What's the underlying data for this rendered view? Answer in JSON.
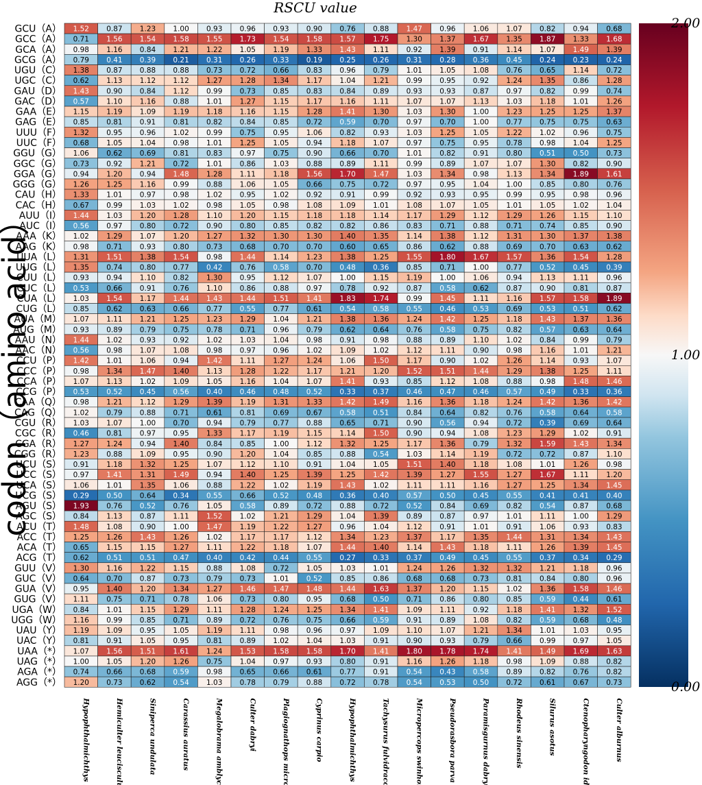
{
  "chart_data": {
    "type": "heatmap",
    "title": "RSCU value",
    "ylabel": "codon（amino acid）",
    "xlabel": "",
    "colorbar": {
      "ticks": [
        "2.00",
        "1.00",
        "0.00"
      ],
      "range": [
        0,
        2
      ],
      "colors": [
        "#053061",
        "#f7f7f7",
        "#67001f"
      ]
    },
    "columns": [
      "Hypophthalmichthys nobilis",
      "Hemiculter leucisculus",
      "Siniperca undulata",
      "Carassius auratus",
      "Megalobrama amblycephala",
      "Culter dabryi",
      "Plagiognathops microlepis",
      "Cyprinus carpio",
      "Hypophthalmichthys molitrix",
      "Tachysurus fulvidraco",
      "Micropercops swinhonis",
      "Pseudorasbora parva",
      "Paramisgurnus dabryanus",
      "Rhodeus sinensis",
      "Silurus asotus",
      "Ctenopharyngodon idella",
      "Culter alburnus"
    ],
    "rows": [
      "GCU（A）",
      "GCC（A）",
      "GCA（A）",
      "GCG（A）",
      "UGU（C）",
      "UGC（C）",
      "GAU（D）",
      "GAC（D）",
      "GAA（E）",
      "GAG（E）",
      "UUU（F）",
      "UUC（F）",
      "GGU（G）",
      "GGC（G）",
      "GGA（G）",
      "GGG（G）",
      "CAU（H）",
      "CAC（H）",
      "AUU（I）",
      "AUC（I）",
      "AAA（K）",
      "AAG（K）",
      "UUA（L）",
      "UUG（L）",
      "CUU（L）",
      "CUC（L）",
      "CUA（L）",
      "CUG（L）",
      "AUA（M）",
      "AUG（M）",
      "AAU（N）",
      "AAC（N）",
      "CCU（P）",
      "CCC（P）",
      "CCA（P）",
      "CCG（P）",
      "CAA（Q）",
      "CAG（Q）",
      "CGU（R）",
      "CGC（R）",
      "CGA（R）",
      "CGG（R）",
      "UCU（S）",
      "UCC（S）",
      "UCA（S）",
      "UCG（S）",
      "AGU（S）",
      "AGC（S）",
      "ACU（T）",
      "ACC（T）",
      "ACA（T）",
      "ACG（T）",
      "GUU（V）",
      "GUC（V）",
      "GUA（V）",
      "GUG（V）",
      "UGA（W）",
      "UGG（W）",
      "UAU（Y）",
      "UAC（Y）",
      "UAA（*）",
      "UAG（*）",
      "AGA（*）",
      "AGG（*）"
    ],
    "values": [
      [
        1.52,
        0.87,
        1.23,
        1.0,
        0.93,
        0.96,
        0.93,
        0.9,
        0.76,
        0.88,
        1.47,
        0.96,
        1.06,
        1.07,
        0.82,
        0.94,
        0.68
      ],
      [
        0.71,
        1.56,
        1.54,
        1.58,
        1.55,
        1.73,
        1.54,
        1.58,
        1.57,
        1.75,
        1.3,
        1.37,
        1.67,
        1.35,
        1.87,
        1.33,
        1.68
      ],
      [
        0.98,
        1.16,
        0.84,
        1.21,
        1.22,
        1.05,
        1.19,
        1.33,
        1.43,
        1.11,
        0.92,
        1.39,
        0.91,
        1.14,
        1.07,
        1.49,
        1.39
      ],
      [
        0.79,
        0.41,
        0.39,
        0.21,
        0.31,
        0.26,
        0.33,
        0.19,
        0.25,
        0.26,
        0.31,
        0.28,
        0.36,
        0.45,
        0.24,
        0.23,
        0.24
      ],
      [
        1.38,
        0.87,
        0.88,
        0.88,
        0.73,
        0.72,
        0.66,
        0.83,
        0.96,
        0.79,
        1.01,
        1.05,
        1.08,
        0.76,
        0.65,
        1.14,
        0.72
      ],
      [
        0.62,
        1.13,
        1.12,
        1.12,
        1.27,
        1.28,
        1.34,
        1.17,
        1.04,
        1.21,
        0.99,
        0.95,
        0.92,
        1.24,
        1.35,
        0.86,
        1.28
      ],
      [
        1.43,
        0.9,
        0.84,
        1.12,
        0.99,
        0.73,
        0.85,
        0.83,
        0.84,
        0.89,
        0.93,
        0.93,
        0.87,
        0.97,
        0.82,
        0.99,
        0.74
      ],
      [
        0.57,
        1.1,
        1.16,
        0.88,
        1.01,
        1.27,
        1.15,
        1.17,
        1.16,
        1.11,
        1.07,
        1.07,
        1.13,
        1.03,
        1.18,
        1.01,
        1.26
      ],
      [
        1.15,
        1.19,
        1.09,
        1.19,
        1.18,
        1.16,
        1.15,
        1.28,
        1.41,
        1.3,
        1.03,
        1.3,
        1.0,
        1.23,
        1.25,
        1.25,
        1.37
      ],
      [
        0.85,
        0.81,
        0.91,
        0.81,
        0.82,
        0.84,
        0.85,
        0.72,
        0.59,
        0.7,
        0.97,
        0.7,
        1.0,
        0.77,
        0.75,
        0.75,
        0.63
      ],
      [
        1.32,
        0.95,
        0.96,
        1.02,
        0.99,
        0.75,
        0.95,
        1.06,
        0.82,
        0.93,
        1.03,
        1.25,
        1.05,
        1.22,
        1.02,
        0.96,
        0.75
      ],
      [
        0.68,
        1.05,
        1.04,
        0.98,
        1.01,
        1.25,
        1.05,
        0.94,
        1.18,
        1.07,
        0.97,
        0.75,
        0.95,
        0.78,
        0.98,
        1.04,
        1.25
      ],
      [
        1.06,
        0.62,
        0.69,
        0.81,
        0.83,
        0.97,
        0.75,
        0.9,
        0.66,
        0.7,
        1.01,
        0.82,
        0.91,
        0.8,
        0.51,
        0.5,
        0.73
      ],
      [
        0.73,
        0.92,
        1.21,
        0.72,
        1.01,
        0.86,
        1.03,
        0.88,
        0.89,
        1.11,
        0.99,
        0.89,
        1.07,
        1.07,
        1.3,
        0.82,
        0.9
      ],
      [
        0.94,
        1.2,
        0.94,
        1.48,
        1.28,
        1.11,
        1.18,
        1.56,
        1.7,
        1.47,
        1.03,
        1.34,
        0.98,
        1.13,
        1.34,
        1.89,
        1.61
      ],
      [
        1.26,
        1.25,
        1.16,
        0.99,
        0.88,
        1.06,
        1.05,
        0.66,
        0.75,
        0.72,
        0.97,
        0.95,
        1.04,
        1.0,
        0.85,
        0.8,
        0.76
      ],
      [
        1.33,
        1.01,
        0.97,
        0.98,
        1.02,
        0.95,
        1.02,
        0.92,
        0.91,
        0.99,
        0.92,
        0.93,
        0.95,
        0.99,
        0.95,
        0.98,
        0.96
      ],
      [
        0.67,
        0.99,
        1.03,
        1.02,
        0.98,
        1.05,
        0.98,
        1.08,
        1.09,
        1.01,
        1.08,
        1.07,
        1.05,
        1.01,
        1.05,
        1.02,
        1.04
      ],
      [
        1.44,
        1.03,
        1.2,
        1.28,
        1.1,
        1.2,
        1.15,
        1.18,
        1.18,
        1.14,
        1.17,
        1.29,
        1.12,
        1.29,
        1.26,
        1.15,
        1.1
      ],
      [
        0.56,
        0.97,
        0.8,
        0.72,
        0.9,
        0.8,
        0.85,
        0.82,
        0.82,
        0.86,
        0.83,
        0.71,
        0.88,
        0.71,
        0.74,
        0.85,
        0.9
      ],
      [
        1.02,
        1.29,
        1.07,
        1.2,
        1.27,
        1.32,
        1.3,
        1.3,
        1.4,
        1.35,
        1.14,
        1.38,
        1.12,
        1.31,
        1.3,
        1.37,
        1.38
      ],
      [
        0.98,
        0.71,
        0.93,
        0.8,
        0.73,
        0.68,
        0.7,
        0.7,
        0.6,
        0.65,
        0.86,
        0.62,
        0.88,
        0.69,
        0.7,
        0.63,
        0.62
      ],
      [
        1.31,
        1.51,
        1.38,
        1.54,
        0.98,
        1.44,
        1.14,
        1.23,
        1.38,
        1.25,
        1.55,
        1.8,
        1.67,
        1.57,
        1.36,
        1.54,
        1.28
      ],
      [
        1.35,
        0.74,
        0.8,
        0.77,
        0.42,
        0.76,
        0.58,
        0.7,
        0.48,
        0.36,
        0.85,
        0.71,
        1.0,
        0.77,
        0.52,
        0.45,
        0.39
      ],
      [
        0.93,
        0.94,
        1.1,
        0.82,
        1.3,
        0.95,
        1.12,
        1.07,
        1.0,
        1.15,
        1.19,
        1.0,
        1.06,
        0.94,
        1.13,
        1.11,
        0.96
      ],
      [
        0.53,
        0.66,
        0.91,
        0.76,
        1.1,
        0.86,
        0.88,
        0.97,
        0.78,
        0.92,
        0.87,
        0.58,
        0.62,
        0.87,
        0.9,
        0.81,
        0.87
      ],
      [
        1.03,
        1.54,
        1.17,
        1.44,
        1.43,
        1.44,
        1.51,
        1.41,
        1.83,
        1.74,
        0.99,
        1.45,
        1.11,
        1.16,
        1.57,
        1.58,
        1.89
      ],
      [
        0.85,
        0.62,
        0.63,
        0.66,
        0.77,
        0.55,
        0.77,
        0.61,
        0.54,
        0.58,
        0.55,
        0.46,
        0.53,
        0.69,
        0.53,
        0.51,
        0.62
      ],
      [
        1.07,
        1.11,
        1.21,
        1.25,
        1.23,
        1.29,
        1.04,
        1.21,
        1.38,
        1.36,
        1.24,
        1.42,
        1.25,
        1.18,
        1.43,
        1.37,
        1.36
      ],
      [
        0.93,
        0.89,
        0.79,
        0.75,
        0.78,
        0.71,
        0.96,
        0.79,
        0.62,
        0.64,
        0.76,
        0.58,
        0.75,
        0.82,
        0.57,
        0.63,
        0.64
      ],
      [
        1.44,
        1.02,
        0.93,
        0.92,
        1.02,
        1.03,
        1.04,
        0.98,
        0.91,
        0.98,
        0.88,
        0.89,
        1.1,
        1.02,
        0.84,
        0.99,
        0.79
      ],
      [
        0.56,
        0.98,
        1.07,
        1.08,
        0.98,
        0.97,
        0.96,
        1.02,
        1.09,
        1.02,
        1.12,
        1.11,
        0.9,
        0.98,
        1.16,
        1.01,
        1.21
      ],
      [
        1.42,
        1.01,
        1.06,
        0.94,
        1.42,
        1.11,
        1.27,
        1.24,
        1.06,
        1.5,
        1.17,
        0.9,
        1.02,
        1.26,
        1.14,
        0.93,
        1.07
      ],
      [
        0.98,
        1.34,
        1.47,
        1.4,
        1.13,
        1.28,
        1.22,
        1.17,
        1.21,
        1.2,
        1.52,
        1.51,
        1.44,
        1.29,
        1.38,
        1.25,
        1.11
      ],
      [
        1.07,
        1.13,
        1.02,
        1.09,
        1.05,
        1.16,
        1.04,
        1.07,
        1.41,
        0.93,
        0.85,
        1.12,
        1.08,
        0.88,
        0.98,
        1.48,
        1.46
      ],
      [
        0.53,
        0.52,
        0.45,
        0.56,
        0.4,
        0.46,
        0.48,
        0.52,
        0.33,
        0.37,
        0.46,
        0.47,
        0.46,
        0.57,
        0.49,
        0.33,
        0.36
      ],
      [
        0.98,
        1.21,
        1.12,
        1.29,
        1.39,
        1.19,
        1.31,
        1.33,
        1.42,
        1.49,
        1.16,
        1.36,
        1.18,
        1.24,
        1.42,
        1.36,
        1.42
      ],
      [
        1.02,
        0.79,
        0.88,
        0.71,
        0.61,
        0.81,
        0.69,
        0.67,
        0.58,
        0.51,
        0.84,
        0.64,
        0.82,
        0.76,
        0.58,
        0.64,
        0.58
      ],
      [
        1.03,
        1.07,
        1.0,
        0.7,
        0.94,
        0.79,
        0.77,
        0.88,
        0.65,
        0.71,
        0.9,
        0.56,
        0.94,
        0.72,
        0.39,
        0.69,
        0.64
      ],
      [
        0.46,
        0.81,
        0.97,
        0.95,
        1.33,
        1.17,
        1.19,
        1.15,
        1.14,
        1.5,
        0.9,
        0.94,
        1.08,
        1.23,
        1.29,
        1.02,
        0.91
      ],
      [
        1.27,
        1.24,
        0.94,
        1.4,
        0.84,
        0.85,
        1.0,
        1.12,
        1.32,
        1.25,
        1.17,
        1.36,
        0.79,
        1.32,
        1.59,
        1.43,
        1.34
      ],
      [
        1.23,
        0.88,
        1.09,
        0.95,
        0.9,
        1.2,
        1.04,
        0.85,
        0.88,
        0.54,
        1.03,
        1.14,
        1.19,
        0.72,
        0.72,
        0.87,
        1.1
      ],
      [
        0.91,
        1.18,
        1.32,
        1.25,
        1.07,
        1.12,
        1.1,
        0.91,
        1.04,
        1.05,
        1.51,
        1.4,
        1.18,
        1.08,
        1.01,
        1.26,
        0.98
      ],
      [
        0.97,
        1.41,
        1.31,
        1.49,
        0.94,
        1.4,
        1.25,
        1.39,
        1.25,
        1.42,
        1.39,
        1.27,
        1.55,
        1.27,
        1.67,
        1.11,
        1.2
      ],
      [
        1.06,
        1.01,
        1.35,
        1.06,
        0.88,
        1.22,
        1.02,
        1.19,
        1.43,
        1.02,
        1.11,
        1.11,
        1.16,
        1.27,
        1.25,
        1.34,
        1.45
      ],
      [
        0.29,
        0.5,
        0.64,
        0.34,
        0.55,
        0.66,
        0.52,
        0.48,
        0.36,
        0.4,
        0.57,
        0.5,
        0.45,
        0.55,
        0.41,
        0.41,
        0.4
      ],
      [
        1.93,
        0.76,
        0.52,
        0.76,
        1.05,
        0.58,
        0.89,
        0.72,
        0.88,
        0.72,
        0.52,
        0.84,
        0.69,
        0.82,
        0.54,
        0.87,
        0.68
      ],
      [
        0.84,
        1.13,
        0.87,
        1.11,
        1.52,
        1.02,
        1.21,
        1.29,
        1.04,
        1.39,
        0.89,
        0.87,
        0.97,
        1.01,
        1.11,
        1.0,
        1.29
      ],
      [
        1.48,
        1.08,
        0.9,
        1.0,
        1.47,
        1.19,
        1.22,
        1.27,
        0.96,
        1.04,
        1.12,
        0.91,
        1.01,
        0.91,
        1.06,
        0.93,
        0.83
      ],
      [
        1.25,
        1.26,
        1.43,
        1.26,
        1.02,
        1.17,
        1.17,
        1.12,
        1.34,
        1.23,
        1.37,
        1.17,
        1.35,
        1.44,
        1.31,
        1.34,
        1.43
      ],
      [
        0.65,
        1.15,
        1.15,
        1.27,
        1.11,
        1.22,
        1.18,
        1.07,
        1.44,
        1.4,
        1.14,
        1.43,
        1.18,
        1.11,
        1.26,
        1.39,
        1.45
      ],
      [
        0.62,
        0.51,
        0.51,
        0.47,
        0.4,
        0.42,
        0.44,
        0.55,
        0.27,
        0.33,
        0.37,
        0.49,
        0.45,
        0.55,
        0.37,
        0.34,
        0.29
      ],
      [
        1.3,
        1.16,
        1.22,
        1.15,
        0.88,
        1.08,
        0.72,
        1.05,
        1.03,
        1.01,
        1.24,
        1.26,
        1.32,
        1.32,
        1.21,
        1.18,
        0.96
      ],
      [
        0.64,
        0.7,
        0.87,
        0.73,
        0.79,
        0.73,
        1.01,
        0.52,
        0.85,
        0.86,
        0.68,
        0.68,
        0.73,
        0.81,
        0.84,
        0.8,
        0.96
      ],
      [
        0.95,
        1.4,
        1.2,
        1.34,
        1.27,
        1.46,
        1.47,
        1.48,
        1.44,
        1.63,
        1.37,
        1.2,
        1.15,
        1.02,
        1.36,
        1.58,
        1.46
      ],
      [
        1.11,
        0.75,
        0.71,
        0.78,
        1.06,
        0.73,
        0.8,
        0.95,
        0.68,
        0.5,
        0.71,
        0.86,
        0.8,
        0.85,
        0.59,
        0.44,
        0.61
      ],
      [
        0.84,
        1.01,
        1.15,
        1.29,
        1.11,
        1.28,
        1.24,
        1.25,
        1.34,
        1.41,
        1.09,
        1.11,
        0.92,
        1.18,
        1.41,
        1.32,
        1.52
      ],
      [
        1.16,
        0.99,
        0.85,
        0.71,
        0.89,
        0.72,
        0.76,
        0.75,
        0.66,
        0.59,
        0.91,
        0.89,
        1.08,
        0.82,
        0.59,
        0.68,
        0.48
      ],
      [
        1.19,
        1.09,
        0.95,
        1.05,
        1.19,
        1.11,
        0.98,
        0.96,
        0.97,
        1.09,
        1.1,
        1.07,
        1.21,
        1.34,
        1.01,
        1.03,
        0.95
      ],
      [
        0.81,
        0.91,
        1.05,
        0.95,
        0.81,
        0.89,
        1.02,
        1.04,
        1.03,
        0.91,
        0.9,
        0.93,
        0.79,
        0.66,
        0.99,
        0.97,
        1.05
      ],
      [
        1.07,
        1.56,
        1.51,
        1.61,
        1.24,
        1.53,
        1.58,
        1.58,
        1.7,
        1.41,
        1.8,
        1.78,
        1.74,
        1.41,
        1.49,
        1.69,
        1.63
      ],
      [
        1.0,
        1.05,
        1.2,
        1.26,
        0.75,
        1.04,
        0.97,
        0.93,
        0.8,
        0.91,
        1.16,
        1.26,
        1.18,
        0.98,
        1.09,
        0.88,
        0.82
      ],
      [
        0.74,
        0.66,
        0.68,
        0.59,
        0.98,
        0.65,
        0.66,
        0.61,
        0.77,
        0.91,
        0.54,
        0.43,
        0.58,
        0.89,
        0.82,
        0.76,
        0.82
      ],
      [
        1.2,
        0.73,
        0.62,
        0.54,
        1.03,
        0.78,
        0.79,
        0.88,
        0.72,
        0.78,
        0.54,
        0.53,
        0.5,
        0.72,
        0.61,
        0.67,
        0.73
      ]
    ]
  }
}
